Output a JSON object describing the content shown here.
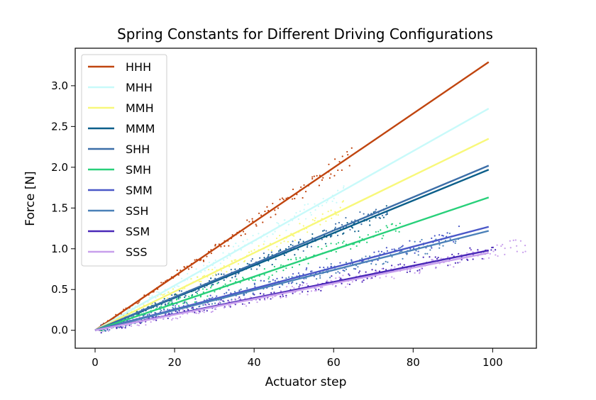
{
  "chart_data": {
    "type": "line",
    "title": "Spring Constants for Different Driving Configurations",
    "xlabel": "Actuator step",
    "ylabel": "Force [N]",
    "xlim": [
      -5,
      111
    ],
    "ylim": [
      -0.22,
      3.46
    ],
    "xticks": [
      0,
      20,
      40,
      60,
      80,
      100
    ],
    "yticks": [
      0.0,
      0.5,
      1.0,
      1.5,
      2.0,
      2.5,
      3.0
    ],
    "xtick_labels": [
      "0",
      "20",
      "40",
      "60",
      "80",
      "100"
    ],
    "ytick_labels": [
      "0.0",
      "0.5",
      "1.0",
      "1.5",
      "2.0",
      "2.5",
      "3.0"
    ],
    "grid": false,
    "legend_position": "top-left",
    "series": [
      {
        "name": "HHH",
        "color": "#c0450f",
        "x": [
          0,
          99
        ],
        "y": [
          0.0,
          3.29
        ],
        "points_x_max": 64,
        "noise": 0.025
      },
      {
        "name": "MHH",
        "color": "#c8fafa",
        "x": [
          0,
          99
        ],
        "y": [
          0.0,
          2.72
        ],
        "points_x_max": 62,
        "noise": 0.04
      },
      {
        "name": "MMH",
        "color": "#f8f87a",
        "x": [
          0,
          99
        ],
        "y": [
          0.0,
          2.35
        ],
        "points_x_max": 62,
        "noise": 0.04
      },
      {
        "name": "MMM",
        "color": "#0c5f8a",
        "x": [
          0,
          99
        ],
        "y": [
          0.0,
          1.97
        ],
        "points_x_max": 73,
        "noise": 0.04
      },
      {
        "name": "SHH",
        "color": "#3c6ea8",
        "x": [
          0,
          99
        ],
        "y": [
          0.0,
          2.02
        ],
        "points_x_max": 73,
        "noise": 0.04
      },
      {
        "name": "SMH",
        "color": "#28d07a",
        "x": [
          0,
          99
        ],
        "y": [
          0.0,
          1.63
        ],
        "points_x_max": 76,
        "noise": 0.05
      },
      {
        "name": "SMM",
        "color": "#4a58c8",
        "x": [
          0,
          99
        ],
        "y": [
          0.0,
          1.27
        ],
        "points_x_max": 91,
        "noise": 0.05
      },
      {
        "name": "SSH",
        "color": "#4a80b8",
        "x": [
          0,
          99
        ],
        "y": [
          0.0,
          1.22
        ],
        "points_x_max": 90,
        "noise": 0.05
      },
      {
        "name": "SSM",
        "color": "#4a28b8",
        "x": [
          0,
          99
        ],
        "y": [
          0.0,
          0.98
        ],
        "points_x_max": 100,
        "noise": 0.05
      },
      {
        "name": "SSS",
        "color": "#c8a0ec",
        "x": [
          0,
          99
        ],
        "y": [
          0.0,
          0.95
        ],
        "points_x_max": 108,
        "noise": 0.06
      }
    ]
  }
}
